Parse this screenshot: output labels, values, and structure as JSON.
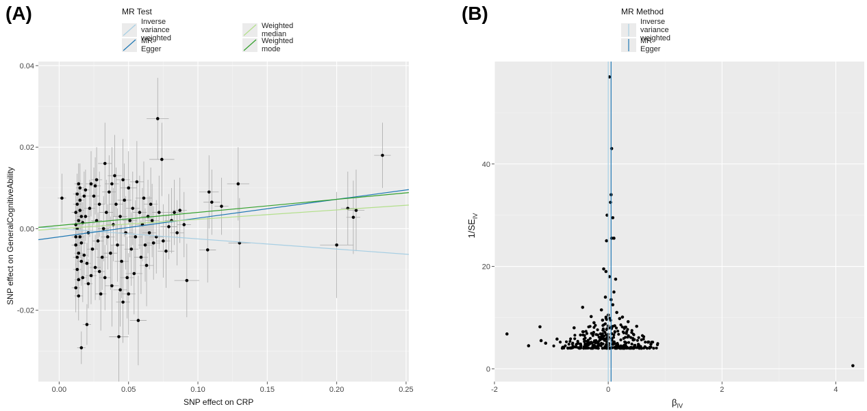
{
  "panels": {
    "a_label": "(A)",
    "b_label": "(B)"
  },
  "chart_data": [
    {
      "type": "scatter",
      "panel": "(A)",
      "title": "",
      "xlabel": "SNP effect on CRP",
      "ylabel": "SNP effect on GeneralCognitiveAbility",
      "xlim": [
        -0.015,
        0.252
      ],
      "ylim": [
        -0.0375,
        0.041
      ],
      "x_ticks": [
        0.0,
        0.05,
        0.1,
        0.15,
        0.2,
        0.25
      ],
      "x_tick_labels": [
        "0.00",
        "0.05",
        "0.10",
        "0.15",
        "0.20",
        "0.25"
      ],
      "y_ticks": [
        -0.02,
        0.0,
        0.02,
        0.04
      ],
      "y_tick_labels": [
        "-0.02",
        "0.00",
        "0.02",
        "0.04"
      ],
      "grid": true,
      "legend": {
        "title": "MR Test",
        "position": "top",
        "entries": [
          {
            "name": "Inverse variance weighted",
            "color": "#a6cee3"
          },
          {
            "name": "MR Egger",
            "color": "#1f78b4"
          },
          {
            "name": "Weighted median",
            "color": "#b2df8a"
          },
          {
            "name": "Weighted mode",
            "color": "#33a02c"
          }
        ]
      },
      "lines": [
        {
          "name": "Inverse variance weighted",
          "color": "#a6cee3",
          "intercept": 0.0,
          "slope": -0.025
        },
        {
          "name": "MR Egger",
          "color": "#1f78b4",
          "intercept": -0.002,
          "slope": 0.046
        },
        {
          "name": "Weighted median",
          "color": "#b2df8a",
          "intercept": 0.0,
          "slope": 0.023
        },
        {
          "name": "Weighted mode",
          "color": "#33a02c",
          "intercept": 0.0008,
          "slope": 0.032
        }
      ],
      "points": [
        {
          "x": 0.002,
          "y": 0.0075,
          "xe": 0.003,
          "ye": 0.006
        },
        {
          "x": 0.071,
          "y": 0.027,
          "xe": 0.008,
          "ye": 0.01
        },
        {
          "x": 0.074,
          "y": 0.017,
          "xe": 0.009,
          "ye": 0.009
        },
        {
          "x": 0.233,
          "y": 0.018,
          "xe": 0.006,
          "ye": 0.008
        },
        {
          "x": 0.129,
          "y": 0.011,
          "xe": 0.008,
          "ye": 0.009
        },
        {
          "x": 0.108,
          "y": 0.009,
          "xe": 0.007,
          "ye": 0.009
        },
        {
          "x": 0.117,
          "y": 0.0055,
          "xe": 0.005,
          "ye": 0.007
        },
        {
          "x": 0.11,
          "y": 0.0065,
          "xe": 0.006,
          "ye": 0.008
        },
        {
          "x": 0.2,
          "y": -0.004,
          "xe": 0.012,
          "ye": 0.013
        },
        {
          "x": 0.208,
          "y": 0.005,
          "xe": 0.005,
          "ye": 0.009
        },
        {
          "x": 0.212,
          "y": 0.0028,
          "xe": 0.005,
          "ye": 0.009
        },
        {
          "x": 0.214,
          "y": 0.0045,
          "xe": 0.006,
          "ye": 0.01
        },
        {
          "x": 0.13,
          "y": -0.0035,
          "xe": 0.008,
          "ye": 0.011
        },
        {
          "x": 0.107,
          "y": -0.0052,
          "xe": 0.006,
          "ye": 0.008
        },
        {
          "x": 0.092,
          "y": -0.0127,
          "xe": 0.009,
          "ye": 0.009
        },
        {
          "x": 0.016,
          "y": -0.0292,
          "xe": 0.003,
          "ye": 0.004
        },
        {
          "x": 0.043,
          "y": -0.0265,
          "xe": 0.007,
          "ye": 0.011
        },
        {
          "x": 0.057,
          "y": -0.0225,
          "xe": 0.006,
          "ye": 0.011
        },
        {
          "x": 0.02,
          "y": -0.0235,
          "xe": 0.003,
          "ye": 0.005
        },
        {
          "x": 0.023,
          "y": 0.011,
          "xe": 0.004,
          "ye": 0.008
        },
        {
          "x": 0.033,
          "y": 0.016,
          "xe": 0.005,
          "ye": 0.01
        },
        {
          "x": 0.04,
          "y": 0.013,
          "xe": 0.005,
          "ye": 0.01
        },
        {
          "x": 0.05,
          "y": 0.01,
          "xe": 0.006,
          "ye": 0.009
        },
        {
          "x": 0.056,
          "y": 0.0115,
          "xe": 0.005,
          "ye": 0.01
        },
        {
          "x": 0.061,
          "y": 0.0075,
          "xe": 0.006,
          "ye": 0.009
        },
        {
          "x": 0.066,
          "y": 0.006,
          "xe": 0.005,
          "ye": 0.009
        },
        {
          "x": 0.083,
          "y": 0.004,
          "xe": 0.006,
          "ye": 0.008
        },
        {
          "x": 0.087,
          "y": 0.0045,
          "xe": 0.005,
          "ye": 0.008
        },
        {
          "x": 0.079,
          "y": 0.0005,
          "xe": 0.006,
          "ye": 0.008
        },
        {
          "x": 0.068,
          "y": -0.0035,
          "xe": 0.005,
          "ye": 0.009
        },
        {
          "x": 0.077,
          "y": -0.0055,
          "xe": 0.006,
          "ye": 0.009
        },
        {
          "x": 0.063,
          "y": -0.009,
          "xe": 0.005,
          "ye": 0.01
        },
        {
          "x": 0.054,
          "y": -0.011,
          "xe": 0.006,
          "ye": 0.01
        },
        {
          "x": 0.046,
          "y": -0.018,
          "xe": 0.005,
          "ye": 0.01
        },
        {
          "x": 0.038,
          "y": -0.014,
          "xe": 0.005,
          "ye": 0.01
        },
        {
          "x": 0.03,
          "y": -0.016,
          "xe": 0.004,
          "ye": 0.009
        },
        {
          "x": 0.026,
          "y": -0.0095,
          "xe": 0.004,
          "ye": 0.008
        },
        {
          "x": 0.014,
          "y": -0.0165,
          "xe": 0.003,
          "ye": 0.006
        },
        {
          "x": 0.012,
          "y": -0.0145,
          "xe": 0.003,
          "ye": 0.006
        },
        {
          "x": 0.015,
          "y": 0.01,
          "xe": 0.003,
          "ye": 0.006
        },
        {
          "x": 0.018,
          "y": 0.008,
          "xe": 0.003,
          "ye": 0.006
        },
        {
          "x": 0.013,
          "y": 0.006,
          "xe": 0.003,
          "ye": 0.005
        },
        {
          "x": 0.012,
          "y": 0.004,
          "xe": 0.003,
          "ye": 0.005
        },
        {
          "x": 0.014,
          "y": 0.002,
          "xe": 0.003,
          "ye": 0.005
        },
        {
          "x": 0.013,
          "y": 0.0,
          "xe": 0.003,
          "ye": 0.005
        },
        {
          "x": 0.015,
          "y": -0.002,
          "xe": 0.003,
          "ye": 0.005
        },
        {
          "x": 0.012,
          "y": -0.004,
          "xe": 0.003,
          "ye": 0.005
        },
        {
          "x": 0.014,
          "y": -0.006,
          "xe": 0.003,
          "ye": 0.005
        },
        {
          "x": 0.016,
          "y": -0.008,
          "xe": 0.003,
          "ye": 0.006
        },
        {
          "x": 0.013,
          "y": -0.01,
          "xe": 0.003,
          "ye": 0.006
        },
        {
          "x": 0.017,
          "y": -0.012,
          "xe": 0.003,
          "ye": 0.006
        },
        {
          "x": 0.019,
          "y": 0.003,
          "xe": 0.003,
          "ye": 0.006
        },
        {
          "x": 0.021,
          "y": -0.001,
          "xe": 0.003,
          "ye": 0.006
        },
        {
          "x": 0.022,
          "y": 0.005,
          "xe": 0.004,
          "ye": 0.007
        },
        {
          "x": 0.024,
          "y": -0.005,
          "xe": 0.004,
          "ye": 0.007
        },
        {
          "x": 0.025,
          "y": 0.008,
          "xe": 0.004,
          "ye": 0.007
        },
        {
          "x": 0.027,
          "y": 0.002,
          "xe": 0.004,
          "ye": 0.007
        },
        {
          "x": 0.028,
          "y": -0.003,
          "xe": 0.004,
          "ye": 0.007
        },
        {
          "x": 0.029,
          "y": 0.006,
          "xe": 0.004,
          "ye": 0.008
        },
        {
          "x": 0.031,
          "y": -0.007,
          "xe": 0.004,
          "ye": 0.008
        },
        {
          "x": 0.032,
          "y": 0.0,
          "xe": 0.004,
          "ye": 0.008
        },
        {
          "x": 0.034,
          "y": 0.004,
          "xe": 0.005,
          "ye": 0.008
        },
        {
          "x": 0.035,
          "y": -0.002,
          "xe": 0.005,
          "ye": 0.008
        },
        {
          "x": 0.036,
          "y": 0.009,
          "xe": 0.005,
          "ye": 0.009
        },
        {
          "x": 0.037,
          "y": -0.006,
          "xe": 0.005,
          "ye": 0.009
        },
        {
          "x": 0.039,
          "y": 0.001,
          "xe": 0.005,
          "ye": 0.009
        },
        {
          "x": 0.041,
          "y": 0.006,
          "xe": 0.005,
          "ye": 0.009
        },
        {
          "x": 0.042,
          "y": -0.004,
          "xe": 0.005,
          "ye": 0.009
        },
        {
          "x": 0.044,
          "y": 0.003,
          "xe": 0.005,
          "ye": 0.009
        },
        {
          "x": 0.045,
          "y": -0.008,
          "xe": 0.005,
          "ye": 0.009
        },
        {
          "x": 0.047,
          "y": 0.007,
          "xe": 0.005,
          "ye": 0.009
        },
        {
          "x": 0.048,
          "y": -0.001,
          "xe": 0.005,
          "ye": 0.009
        },
        {
          "x": 0.049,
          "y": -0.012,
          "xe": 0.005,
          "ye": 0.01
        },
        {
          "x": 0.051,
          "y": 0.002,
          "xe": 0.005,
          "ye": 0.009
        },
        {
          "x": 0.052,
          "y": -0.005,
          "xe": 0.005,
          "ye": 0.009
        },
        {
          "x": 0.053,
          "y": 0.005,
          "xe": 0.005,
          "ye": 0.009
        },
        {
          "x": 0.055,
          "y": -0.002,
          "xe": 0.005,
          "ye": 0.009
        },
        {
          "x": 0.058,
          "y": 0.004,
          "xe": 0.005,
          "ye": 0.009
        },
        {
          "x": 0.059,
          "y": -0.007,
          "xe": 0.005,
          "ye": 0.009
        },
        {
          "x": 0.06,
          "y": 0.001,
          "xe": 0.005,
          "ye": 0.009
        },
        {
          "x": 0.062,
          "y": -0.004,
          "xe": 0.005,
          "ye": 0.009
        },
        {
          "x": 0.064,
          "y": 0.003,
          "xe": 0.005,
          "ye": 0.009
        },
        {
          "x": 0.065,
          "y": -0.001,
          "xe": 0.005,
          "ye": 0.009
        },
        {
          "x": 0.067,
          "y": 0.002,
          "xe": 0.005,
          "ye": 0.009
        },
        {
          "x": 0.07,
          "y": -0.002,
          "xe": 0.005,
          "ye": 0.009
        },
        {
          "x": 0.072,
          "y": 0.004,
          "xe": 0.005,
          "ye": 0.009
        },
        {
          "x": 0.075,
          "y": -0.003,
          "xe": 0.005,
          "ye": 0.009
        },
        {
          "x": 0.081,
          "y": 0.002,
          "xe": 0.005,
          "ye": 0.008
        },
        {
          "x": 0.085,
          "y": -0.001,
          "xe": 0.005,
          "ye": 0.008
        },
        {
          "x": 0.09,
          "y": 0.001,
          "xe": 0.005,
          "ye": 0.008
        },
        {
          "x": 0.013,
          "y": 0.0085,
          "xe": 0.003,
          "ye": 0.005
        },
        {
          "x": 0.014,
          "y": -0.0125,
          "xe": 0.003,
          "ye": 0.005
        },
        {
          "x": 0.015,
          "y": 0.0045,
          "xe": 0.003,
          "ye": 0.005
        },
        {
          "x": 0.016,
          "y": -0.0035,
          "xe": 0.003,
          "ye": 0.005
        },
        {
          "x": 0.017,
          "y": 0.0015,
          "xe": 0.003,
          "ye": 0.005
        },
        {
          "x": 0.018,
          "y": -0.0065,
          "xe": 0.003,
          "ye": 0.005
        },
        {
          "x": 0.019,
          "y": 0.0095,
          "xe": 0.003,
          "ye": 0.005
        },
        {
          "x": 0.02,
          "y": -0.0085,
          "xe": 0.003,
          "ye": 0.005
        },
        {
          "x": 0.012,
          "y": 0.001,
          "xe": 0.003,
          "ye": 0.005
        },
        {
          "x": 0.013,
          "y": -0.007,
          "xe": 0.003,
          "ye": 0.005
        },
        {
          "x": 0.015,
          "y": 0.007,
          "xe": 0.003,
          "ye": 0.005
        },
        {
          "x": 0.014,
          "y": 0.011,
          "xe": 0.003,
          "ye": 0.005
        },
        {
          "x": 0.016,
          "y": 0.003,
          "xe": 0.003,
          "ye": 0.005
        },
        {
          "x": 0.012,
          "y": -0.002,
          "xe": 0.003,
          "ye": 0.005
        },
        {
          "x": 0.023,
          "y": -0.0115,
          "xe": 0.004,
          "ye": 0.007
        },
        {
          "x": 0.026,
          "y": 0.0105,
          "xe": 0.004,
          "ye": 0.007
        },
        {
          "x": 0.029,
          "y": -0.0105,
          "xe": 0.004,
          "ye": 0.007
        },
        {
          "x": 0.033,
          "y": -0.012,
          "xe": 0.004,
          "ye": 0.008
        },
        {
          "x": 0.038,
          "y": 0.011,
          "xe": 0.005,
          "ye": 0.009
        },
        {
          "x": 0.044,
          "y": -0.015,
          "xe": 0.005,
          "ye": 0.009
        },
        {
          "x": 0.05,
          "y": -0.016,
          "xe": 0.005,
          "ye": 0.01
        },
        {
          "x": 0.046,
          "y": 0.012,
          "xe": 0.005,
          "ye": 0.01
        },
        {
          "x": 0.027,
          "y": 0.012,
          "xe": 0.004,
          "ye": 0.008
        },
        {
          "x": 0.021,
          "y": -0.0135,
          "xe": 0.003,
          "ye": 0.006
        }
      ]
    },
    {
      "type": "scatter",
      "panel": "(B)",
      "title": "",
      "xlabel": "βIV",
      "xlabel_main": "β",
      "xlabel_sub": "IV",
      "ylabel_main": "1/SE",
      "ylabel_sub": "IV",
      "xlim": [
        -2.0,
        4.5
      ],
      "ylim": [
        -2.5,
        60
      ],
      "x_ticks": [
        -2,
        0,
        2,
        4
      ],
      "x_tick_labels": [
        "-2",
        "0",
        "2",
        "4"
      ],
      "y_ticks": [
        0,
        20,
        40
      ],
      "y_tick_labels": [
        "0",
        "20",
        "40"
      ],
      "grid": true,
      "legend": {
        "title": "MR Method",
        "position": "top",
        "entries": [
          {
            "name": "Inverse variance weighted",
            "color": "#a6cee3"
          },
          {
            "name": "MR Egger",
            "color": "#1f78b4"
          }
        ]
      },
      "vlines": [
        {
          "name": "Inverse variance weighted",
          "color": "#a6cee3",
          "x": 0.0
        },
        {
          "name": "MR Egger",
          "color": "#1f78b4",
          "x": 0.05
        }
      ],
      "points": [
        {
          "x": 0.02,
          "y": 57
        },
        {
          "x": 0.06,
          "y": 43
        },
        {
          "x": 0.05,
          "y": 34
        },
        {
          "x": 0.04,
          "y": 32.5
        },
        {
          "x": -0.02,
          "y": 30
        },
        {
          "x": 0.08,
          "y": 29.5
        },
        {
          "x": 0.1,
          "y": 25.5
        },
        {
          "x": 0.06,
          "y": 25.5
        },
        {
          "x": -0.03,
          "y": 25
        },
        {
          "x": -0.08,
          "y": 19.5
        },
        {
          "x": -0.04,
          "y": 19
        },
        {
          "x": 0.02,
          "y": 18
        },
        {
          "x": 0.13,
          "y": 17.5
        },
        {
          "x": 0.1,
          "y": 15
        },
        {
          "x": -0.05,
          "y": 14
        },
        {
          "x": 0.05,
          "y": 13.5
        },
        {
          "x": 0.08,
          "y": 12.5
        },
        {
          "x": -0.12,
          "y": 11.5
        },
        {
          "x": 0.15,
          "y": 11
        },
        {
          "x": -0.45,
          "y": 12
        },
        {
          "x": -1.78,
          "y": 6.8
        },
        {
          "x": -1.4,
          "y": 4.5
        },
        {
          "x": -1.2,
          "y": 8.2
        },
        {
          "x": -1.18,
          "y": 5.5
        },
        {
          "x": -1.1,
          "y": 5.0
        },
        {
          "x": -0.9,
          "y": 5.8
        },
        {
          "x": -0.6,
          "y": 8.0
        },
        {
          "x": 0.5,
          "y": 8.3
        },
        {
          "x": 0.75,
          "y": 4.8
        },
        {
          "x": 0.7,
          "y": 5.2
        },
        {
          "x": 4.3,
          "y": 0.6
        },
        {
          "x": -0.3,
          "y": 10.2
        },
        {
          "x": 0.25,
          "y": 10.1
        },
        {
          "x": 0.35,
          "y": 9.2
        },
        {
          "x": -0.25,
          "y": 9.0
        },
        {
          "x": 0.0,
          "y": 10.5
        },
        {
          "x": -0.1,
          "y": 9.5
        },
        {
          "x": 0.2,
          "y": 9.8
        }
      ]
    }
  ]
}
